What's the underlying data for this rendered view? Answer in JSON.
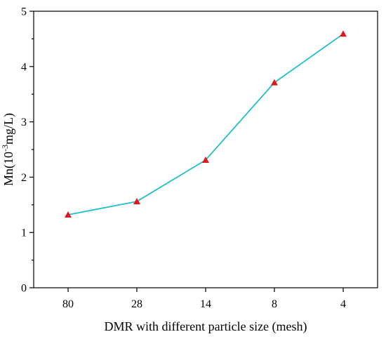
{
  "chart_data": {
    "type": "line",
    "categories": [
      "80",
      "28",
      "14",
      "8",
      "4"
    ],
    "series": [
      {
        "values": [
          1.32,
          1.56,
          2.31,
          3.71,
          4.59
        ]
      }
    ],
    "xlabel": "DMR with different particle size (mesh)",
    "ylabel": {
      "prefix": "Mn(10",
      "sup": "-3",
      "suffix": "mg/L)"
    },
    "ylim": [
      0,
      5
    ],
    "yticks": [
      "0",
      "1",
      "2",
      "3",
      "4",
      "5"
    ],
    "grid": false,
    "line_color": "#1fbccc",
    "marker_color": "#e0171b",
    "marker": "triangle"
  }
}
